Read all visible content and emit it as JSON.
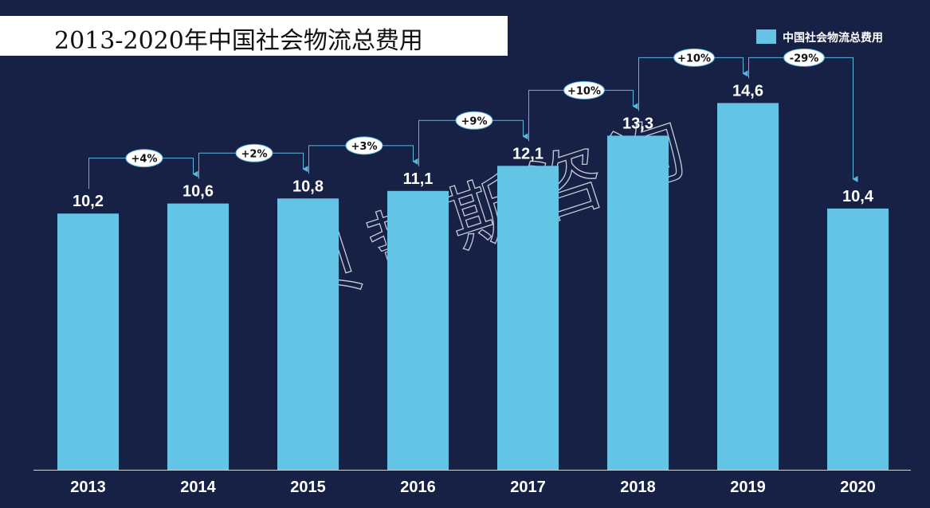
{
  "title": "2013-2020年中国社会物流总费用",
  "watermark": "贝哲斯咨询",
  "chart_data": {
    "type": "bar",
    "categories": [
      "2013",
      "2014",
      "2015",
      "2016",
      "2017",
      "2018",
      "2019",
      "2020"
    ],
    "series": [
      {
        "name": "中国社会物流总费用",
        "values": [
          10.2,
          10.6,
          10.8,
          11.1,
          12.1,
          13.3,
          14.6,
          10.4
        ],
        "value_labels": [
          "10,2",
          "10,6",
          "10,8",
          "11,1",
          "12,1",
          "13,3",
          "14,6",
          "10,4"
        ]
      }
    ],
    "growth_annotations": [
      "+4%",
      "+2%",
      "+3%",
      "+9%",
      "+10%",
      "+10%",
      "-29%"
    ],
    "ylim": [
      0,
      15.5
    ],
    "grid": false,
    "legend_position": "top-right",
    "bar_color": "#63c4e6",
    "background_color": "#172045"
  }
}
